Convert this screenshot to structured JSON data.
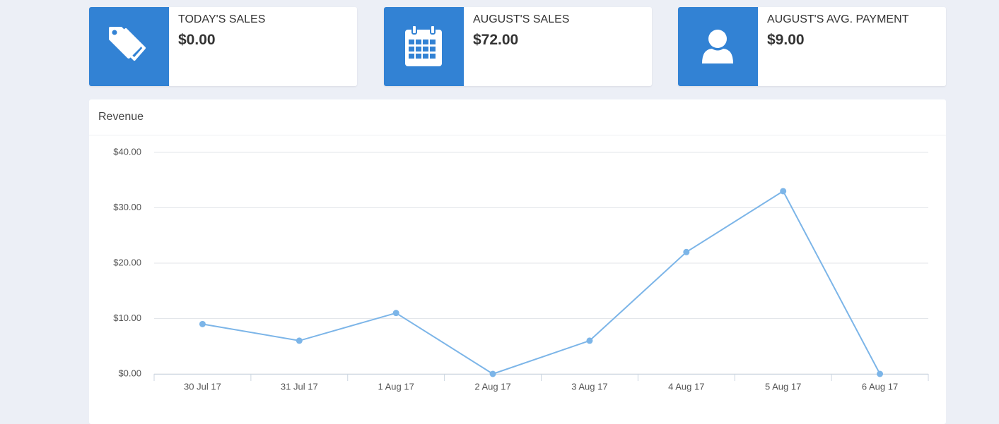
{
  "cards": [
    {
      "title": "TODAY'S SALES",
      "value": "$0.00"
    },
    {
      "title": "AUGUST'S SALES",
      "value": "$72.00"
    },
    {
      "title": "AUGUST'S AVG. PAYMENT",
      "value": "$9.00"
    }
  ],
  "chart_data": {
    "type": "line",
    "title": "Revenue",
    "categories": [
      "30 Jul 17",
      "31 Jul 17",
      "1 Aug 17",
      "2 Aug 17",
      "3 Aug 17",
      "4 Aug 17",
      "5 Aug 17",
      "6 Aug 17"
    ],
    "values": [
      9,
      6,
      11,
      0,
      6,
      22,
      33,
      0
    ],
    "color": "#7cb5e8",
    "ylim": [
      0,
      40
    ],
    "yticks": [
      {
        "value": 0,
        "label": "$0.00"
      },
      {
        "value": 10,
        "label": "$10.00"
      },
      {
        "value": 20,
        "label": "$20.00"
      },
      {
        "value": 30,
        "label": "$30.00"
      },
      {
        "value": 40,
        "label": "$40.00"
      }
    ],
    "grid": true
  }
}
